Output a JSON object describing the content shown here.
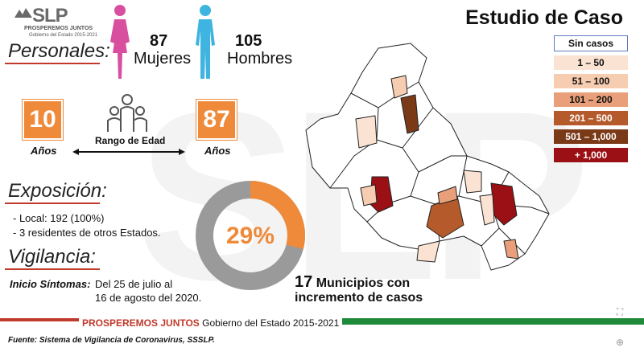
{
  "logo": {
    "text": "SLP",
    "line1": "PROSPEREMOS JUNTOS",
    "line2": "Gobierno del Estado 2015-2021"
  },
  "title": "Estudio de Caso",
  "personales": {
    "label": "Personales:",
    "women": {
      "count": "87",
      "label": "Mujeres"
    },
    "men": {
      "count": "105",
      "label": "Hombres"
    }
  },
  "age": {
    "min": "10",
    "max": "87",
    "years_label": "Años",
    "range_label": "Rango de Edad"
  },
  "exposicion": {
    "label": "Exposición:",
    "items": [
      "- Local:  192 (100%)",
      "- 3 residentes de otros Estados."
    ]
  },
  "vigilancia": {
    "label": "Vigilancia:",
    "inicio_label": "Inicio Síntomas:",
    "inicio_line1": "Del 25 de julio al",
    "inicio_line2": "16 de agosto del 2020."
  },
  "donut": {
    "percent_label": "29%",
    "value": 0.29,
    "colors": {
      "fill": "#ee8a3a",
      "rest": "#9a9a9a"
    }
  },
  "municipios": {
    "number": "17",
    "line1": "Municipios con",
    "line2": "incremento de casos"
  },
  "legend": [
    {
      "label": "Sin casos",
      "color": "#ffffff",
      "text_color": "#111111"
    },
    {
      "label": "1 – 50",
      "color": "#fbe3d3",
      "text_color": "#111111"
    },
    {
      "label": "51 – 100",
      "color": "#f7cdb2",
      "text_color": "#111111"
    },
    {
      "label": "101 – 200",
      "color": "#e9a07a",
      "text_color": "#111111"
    },
    {
      "label": "201 – 500",
      "color": "#b55a2a",
      "text_color": "#ffffff"
    },
    {
      "label": "501 – 1,000",
      "color": "#7a3a18",
      "text_color": "#ffffff"
    },
    {
      "label": "+ 1,000",
      "color": "#9b1014",
      "text_color": "#ffffff"
    }
  ],
  "footer": {
    "brand": "PROSPEREMOS JUNTOS",
    "gov": "Gobierno del Estado 2015-2021",
    "source": "Fuente: Sistema de Vigilancia de Coronavirus, SSSLP."
  },
  "controls": {
    "expand_icon": "⛶",
    "zoom_icon": "⊕"
  }
}
